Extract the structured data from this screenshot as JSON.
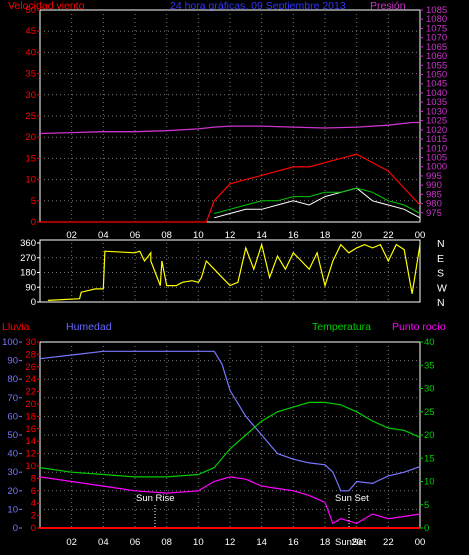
{
  "chart_data": [
    {
      "type": "line",
      "title": "24 hora gráficas. 09 Septiembre 2013",
      "left_axis": {
        "label": "Velocidad viento",
        "range": [
          0,
          50
        ],
        "ticks": [
          "0",
          "5",
          "10",
          "15",
          "20",
          "25",
          "30",
          "35",
          "40",
          "45",
          "50"
        ]
      },
      "right_axis": {
        "label": "Presión",
        "range": [
          970,
          1085
        ],
        "ticks": [
          "975",
          "980",
          "985",
          "990",
          "995",
          "1000",
          "1005",
          "1010",
          "1015",
          "1020",
          "1025",
          "1030",
          "1035",
          "1040",
          "1045",
          "1050",
          "1055",
          "1060",
          "1065",
          "1070",
          "1075",
          "1080",
          "1085"
        ]
      },
      "x_ticks": [
        "02",
        "04",
        "06",
        "08",
        "10",
        "12",
        "14",
        "16",
        "18",
        "20",
        "22",
        "00"
      ],
      "grid": true,
      "series": [
        {
          "name": "Presión",
          "color": "#cc33cc",
          "x": [
            0,
            2,
            4,
            6,
            8,
            10,
            11,
            12,
            14,
            16,
            18,
            20,
            22,
            23.5,
            24
          ],
          "values": [
            1018,
            1018.5,
            1019,
            1019,
            1019.5,
            1020.5,
            1021.5,
            1022,
            1022,
            1021.5,
            1021,
            1021.5,
            1022.5,
            1024,
            1024
          ]
        },
        {
          "name": "Racha",
          "color": "#ff0000",
          "x": [
            0,
            1,
            2,
            3,
            4,
            5,
            6,
            7,
            8,
            9,
            10,
            10.5,
            11,
            12,
            13,
            14,
            15,
            16,
            17,
            18,
            19,
            20,
            21,
            22,
            23,
            24
          ],
          "values": [
            0,
            0,
            0,
            0,
            0,
            0,
            0,
            0,
            0,
            0,
            0,
            0,
            5,
            9,
            10,
            11,
            12,
            13,
            13,
            14,
            15,
            16,
            14,
            12,
            8,
            4
          ]
        },
        {
          "name": "Velocidad media",
          "color": "#ffffff",
          "x": [
            11,
            12,
            13,
            14,
            15,
            16,
            17,
            18,
            19,
            20,
            21,
            22,
            23,
            24
          ],
          "values": [
            1,
            2,
            3,
            3,
            4,
            5,
            4,
            6,
            7,
            8,
            5,
            4,
            3,
            1
          ]
        },
        {
          "name": "Media",
          "color": "#00cc00",
          "x": [
            11,
            12,
            13,
            14,
            15,
            16,
            17,
            18,
            19,
            20,
            21,
            22,
            23,
            24
          ],
          "values": [
            2,
            3,
            4,
            5,
            5,
            6,
            6,
            7,
            7,
            8,
            7,
            5,
            4,
            2
          ]
        }
      ]
    },
    {
      "type": "line",
      "range": [
        0,
        360
      ],
      "ticks": [
        "0",
        "90",
        "180",
        "270",
        "360"
      ],
      "compass": [
        "N",
        "W",
        "S",
        "E",
        "N"
      ],
      "series": [
        {
          "name": "Dirección",
          "color": "#ffff00",
          "x": [
            0.5,
            2.5,
            2.6,
            3.5,
            4,
            4.1,
            6,
            6.3,
            6.6,
            7,
            7,
            7.6,
            7.7,
            8,
            8.6,
            9,
            9.6,
            10,
            10.2,
            10.5,
            11,
            11.5,
            12,
            12.5,
            13,
            13.5,
            14,
            14.5,
            15,
            15.5,
            16,
            16.5,
            17,
            17.5,
            18,
            18.5,
            19,
            19.5,
            20,
            20.5,
            21,
            21.5,
            22,
            22.5,
            23,
            23.5,
            24
          ],
          "values": [
            10,
            20,
            60,
            80,
            80,
            310,
            300,
            310,
            250,
            300,
            250,
            100,
            250,
            100,
            100,
            120,
            130,
            120,
            150,
            250,
            200,
            150,
            100,
            120,
            330,
            200,
            350,
            150,
            280,
            200,
            300,
            250,
            200,
            300,
            100,
            250,
            350,
            300,
            330,
            350,
            330,
            350,
            250,
            350,
            320,
            50,
            350
          ]
        }
      ]
    },
    {
      "type": "line",
      "left_axes": [
        {
          "label": "Lluvia",
          "range": [
            0,
            100
          ],
          "ticks": [
            "0",
            "10",
            "20",
            "30",
            "40",
            "50",
            "60",
            "70",
            "80",
            "90",
            "100"
          ]
        },
        {
          "label": "Humedad",
          "range": [
            0,
            30
          ],
          "ticks": [
            "0",
            "2",
            "4",
            "6",
            "8",
            "10",
            "12",
            "14",
            "16",
            "18",
            "20",
            "22",
            "24",
            "26",
            "28",
            "30"
          ]
        }
      ],
      "right_axis": {
        "label": "Temperatura",
        "range": [
          0,
          40
        ],
        "ticks": [
          "0",
          "5",
          "10",
          "15",
          "20",
          "25",
          "30",
          "35",
          "40"
        ]
      },
      "extra_label": "Punto rocío",
      "x_ticks": [
        "02",
        "04",
        "06",
        "08",
        "10",
        "12",
        "14",
        "16",
        "18",
        "20",
        "22",
        "00"
      ],
      "annotations": [
        "Sun Rise",
        "Sun Set",
        "SunSet"
      ],
      "grid": true,
      "series": [
        {
          "name": "Humedad",
          "color": "#7777ff",
          "x": [
            0,
            2,
            4,
            6,
            8,
            10,
            11,
            11.5,
            12,
            13,
            14,
            15,
            16,
            17,
            18,
            18.5,
            19,
            19.5,
            20,
            21,
            22,
            23,
            24
          ],
          "values": [
            91,
            93,
            95,
            95,
            95,
            95,
            95,
            88,
            74,
            60,
            50,
            40,
            37,
            35,
            34,
            30,
            20,
            20,
            25,
            24,
            28,
            30,
            33
          ]
        },
        {
          "name": "Temperatura",
          "color": "#00cc00",
          "x": [
            0,
            2,
            4,
            6,
            8,
            10,
            11,
            12,
            13,
            14,
            15,
            16,
            17,
            18,
            19,
            20,
            21,
            22,
            23,
            24
          ],
          "values": [
            13,
            12,
            11.5,
            11,
            11,
            11.5,
            13,
            17,
            20,
            23,
            25,
            26,
            27,
            27,
            26.5,
            25,
            23,
            21.5,
            21,
            19.5
          ]
        },
        {
          "name": "Punto rocío",
          "color": "#ff00ff",
          "x": [
            0,
            2,
            4,
            6,
            8,
            10,
            11,
            12,
            13,
            14,
            15,
            16,
            17,
            18,
            18.5,
            19,
            20,
            21,
            22,
            23,
            24
          ],
          "values": [
            11,
            10,
            9,
            8,
            7.5,
            8,
            10,
            11,
            10.5,
            9,
            8.5,
            8,
            7,
            5.5,
            1,
            2,
            1,
            3,
            2,
            2.5,
            3
          ]
        },
        {
          "name": "Lluvia",
          "color": "#ff0000",
          "x": [
            0,
            24
          ],
          "values": [
            0,
            0
          ]
        }
      ]
    }
  ]
}
